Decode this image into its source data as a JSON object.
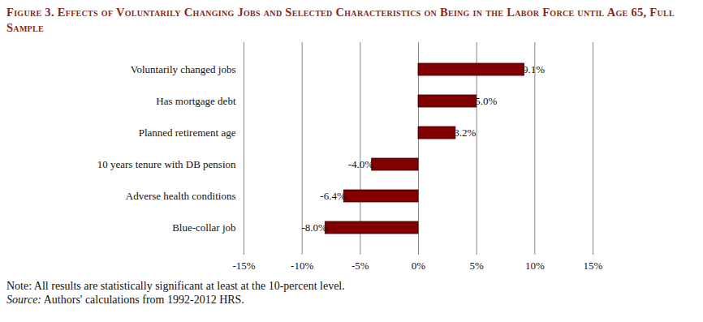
{
  "chart_data": {
    "type": "bar",
    "orientation": "horizontal",
    "title": "Figure 3. Effects of Voluntarily Changing Jobs and Selected Characteristics on Being in the Labor Force until Age 65, Full Sample",
    "note": "Note: All results are statistically significant at least at the 10-percent level.",
    "source": "Source: Authors' calculations from 1992-2012 HRS.",
    "categories": [
      "Voluntarily changed jobs",
      "Has mortgage debt",
      "Planned retirement age",
      "10 years tenure with DB pension",
      "Adverse health conditions",
      "Blue-collar job"
    ],
    "values": [
      9.1,
      5.0,
      3.2,
      -4.0,
      -6.4,
      -8.0
    ],
    "value_labels": [
      "9.1%",
      "5.0%",
      "3.2%",
      "-4.0%",
      "-6.4%",
      "-8.0%"
    ],
    "data_labels": true,
    "color": "#800000",
    "xlim": [
      -15,
      15
    ],
    "xticks": [
      {
        "value": -15,
        "label": "-15%"
      },
      {
        "value": -10,
        "label": "-10%"
      },
      {
        "value": -5,
        "label": "-5%"
      },
      {
        "value": 0,
        "label": "0%"
      },
      {
        "value": 5,
        "label": "5%"
      },
      {
        "value": 10,
        "label": "10%"
      },
      {
        "value": 15,
        "label": "15%"
      }
    ],
    "grid": true
  }
}
